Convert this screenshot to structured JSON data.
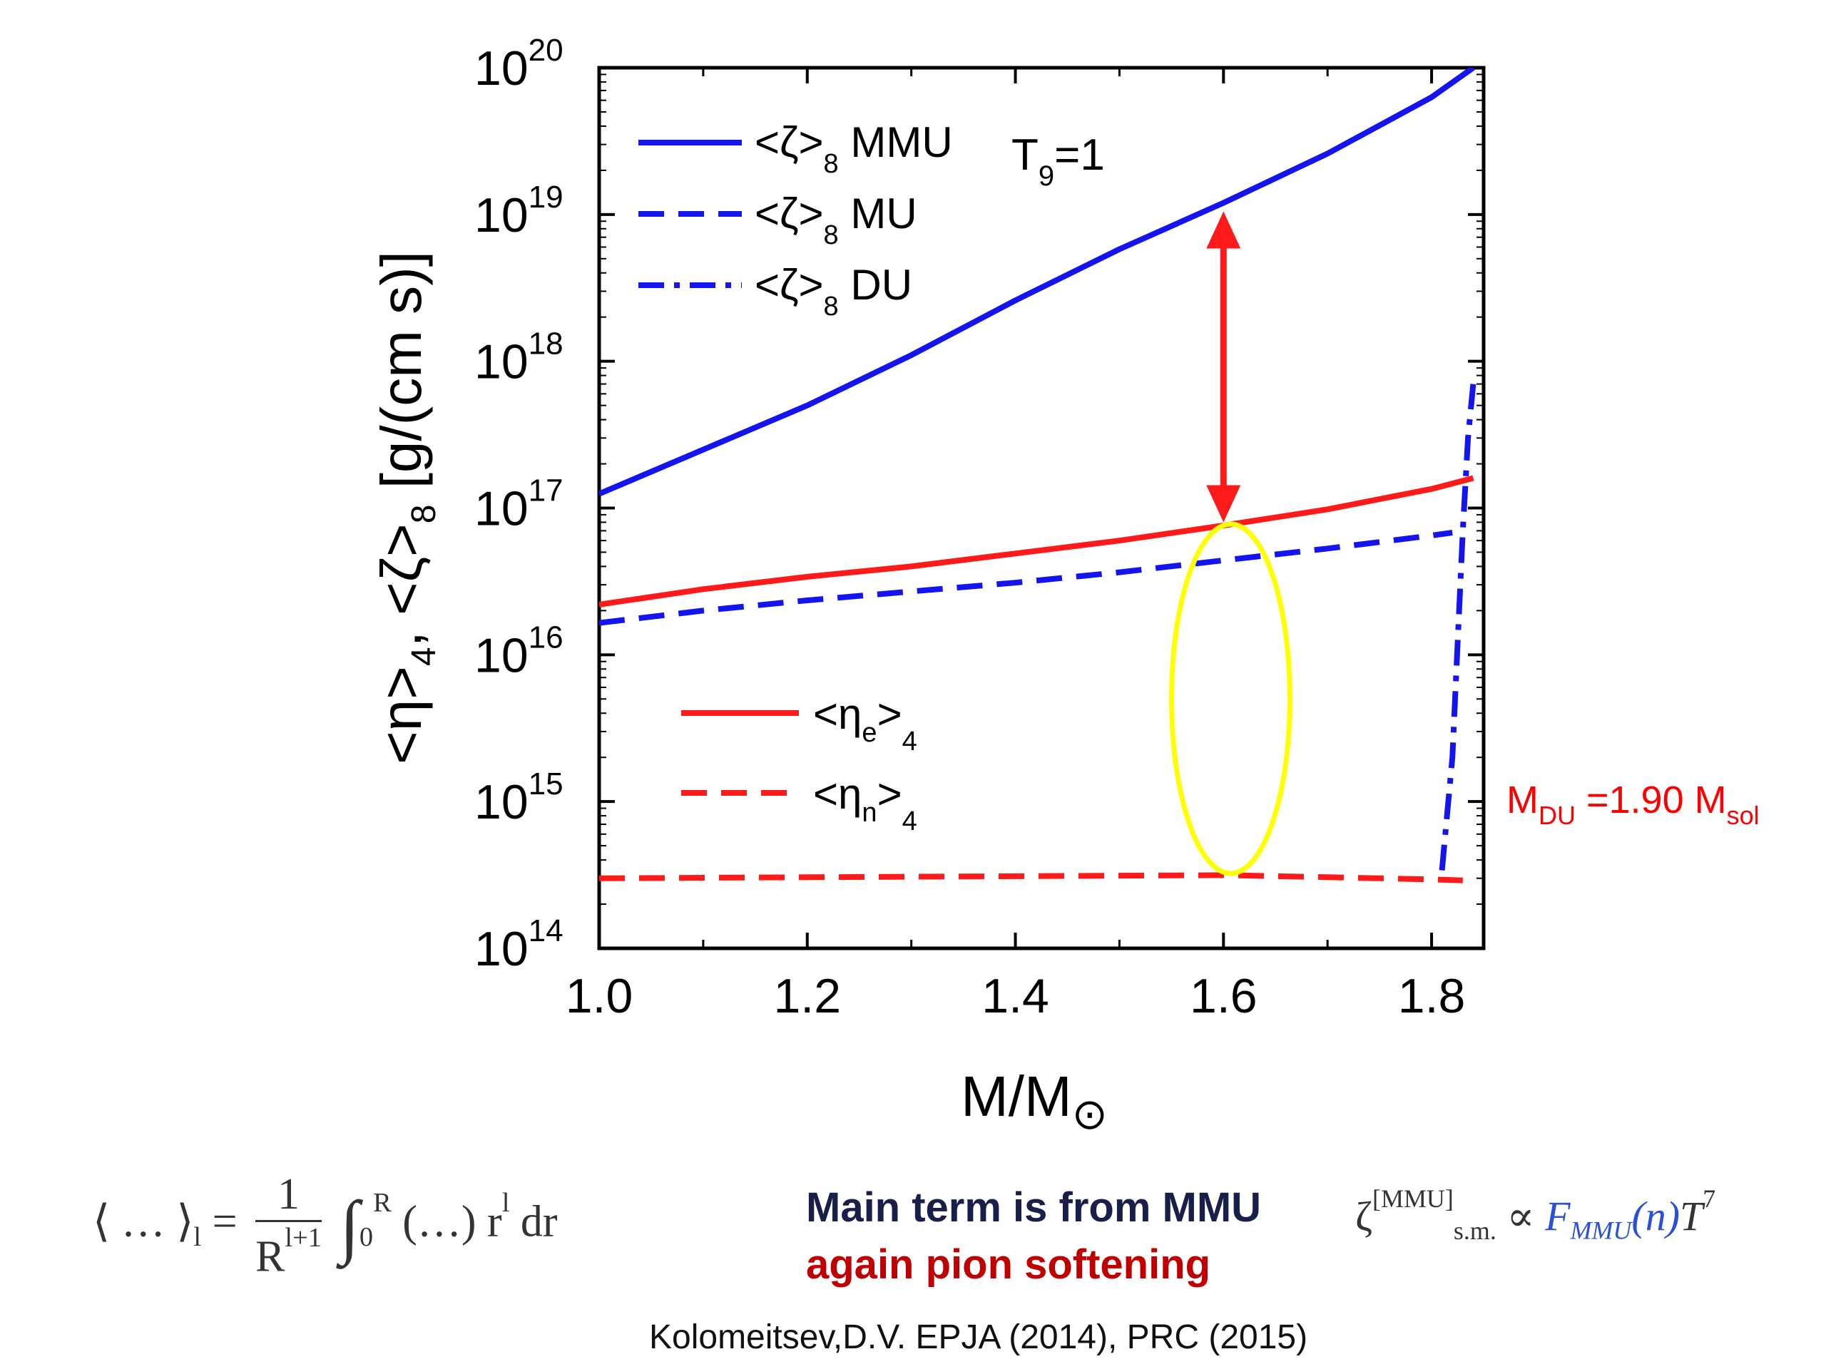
{
  "chart_data": {
    "type": "line",
    "xlabel": "M/M⊙",
    "ylabel": "<η>4, <ζ>8 [g/(cm s)]",
    "xlim": [
      1.0,
      1.85
    ],
    "ylim": [
      100000000000000.0,
      1e+20
    ],
    "y_scale": "log",
    "x_ticks": [
      "1.0",
      "1.2",
      "1.4",
      "1.6",
      "1.8"
    ],
    "x_tick_values": [
      1.0,
      1.2,
      1.4,
      1.6,
      1.8
    ],
    "y_tick_values": [
      100000000000000.0,
      1000000000000000.0,
      1e+16,
      1e+17,
      1e+18,
      1e+19,
      1e+20
    ],
    "y_tick_mantissa": "10",
    "y_tick_exponents": [
      "14",
      "15",
      "16",
      "17",
      "18",
      "19",
      "20"
    ],
    "grid": false,
    "annotation_temperature": {
      "main": "T",
      "sub": "9",
      "rest": "=1"
    },
    "annotation_threshold": {
      "m": "M",
      "sub1": "DU",
      "mid": " =1.90 M",
      "sub2": "sol",
      "color": "#ff0000"
    },
    "series": [
      {
        "key": "zeta_mmu",
        "label_main": "<ζ>",
        "label_sub": "8",
        "label_tail": " MMU",
        "color": "#1414f0",
        "dash": "solid",
        "x": [
          1.0,
          1.1,
          1.2,
          1.3,
          1.4,
          1.5,
          1.6,
          1.7,
          1.8,
          1.84
        ],
        "y": [
          1.25e+17,
          2.5e+17,
          5e+17,
          1.1e+18,
          2.6e+18,
          5.8e+18,
          1.2e+19,
          2.6e+19,
          6.3e+19,
          1e+20
        ]
      },
      {
        "key": "zeta_mu",
        "label_main": "<ζ>",
        "label_sub": "8",
        "label_tail": " MU",
        "color": "#1414f0",
        "dash": "dashed",
        "x": [
          1.0,
          1.1,
          1.2,
          1.3,
          1.4,
          1.5,
          1.6,
          1.7,
          1.8,
          1.82
        ],
        "y": [
          1.65e+16,
          2e+16,
          2.35e+16,
          2.7e+16,
          3.1e+16,
          3.65e+16,
          4.4e+16,
          5.3e+16,
          6.5e+16,
          6.8e+16
        ]
      },
      {
        "key": "zeta_du",
        "label_main": "<ζ>",
        "label_sub": "8",
        "label_tail": " DU",
        "color": "#1414f0",
        "dash": "dashdot",
        "x": [
          1.81,
          1.82,
          1.83,
          1.835,
          1.84
        ],
        "y": [
          340000000000000.0,
          2000000000000000.0,
          7e+16,
          3e+17,
          7e+17
        ]
      },
      {
        "key": "eta_e",
        "label_main": "<η",
        "label_sub": "e",
        "label_tail": ">",
        "label_sub2": "4",
        "color": "#ff1a1a",
        "dash": "solid",
        "x": [
          1.0,
          1.1,
          1.2,
          1.3,
          1.4,
          1.5,
          1.6,
          1.7,
          1.8,
          1.84
        ],
        "y": [
          2.2e+16,
          2.8e+16,
          3.4e+16,
          4e+16,
          4.9e+16,
          6e+16,
          7.6e+16,
          9.8e+16,
          1.35e+17,
          1.6e+17
        ]
      },
      {
        "key": "eta_n",
        "label_main": "<η",
        "label_sub": "n",
        "label_tail": ">",
        "label_sub2": "4",
        "color": "#ff1a1a",
        "dash": "dashed",
        "x": [
          1.0,
          1.2,
          1.4,
          1.6,
          1.7,
          1.8,
          1.83
        ],
        "y": [
          300000000000000.0,
          305000000000000.0,
          310000000000000.0,
          315000000000000.0,
          305000000000000.0,
          295000000000000.0,
          290000000000000.0
        ]
      }
    ]
  },
  "formula_left": {
    "bracket": "⟨ … ⟩",
    "sub": "l",
    "eq": " =",
    "num": "1",
    "den": "R",
    "den_sup": "l+1",
    "integral": "∫",
    "upper": "R",
    "lower": "0",
    "body": "(…) r",
    "body_sup": "l",
    "tail": " dr"
  },
  "note_main": {
    "text": "Main term is from MMU",
    "color": "#1a1f4a"
  },
  "note_sub": {
    "text": "again pion softening",
    "color": "#c00000"
  },
  "formula_right": {
    "zeta": "ζ",
    "sup": "[MMU]",
    "sub": "s.m.",
    "prop": " ∝ ",
    "f": "F",
    "f_sub": "MMU",
    "f_arg": "(n)",
    "t": "T",
    "t_sup": "7"
  },
  "citation": "Kolomeitsev,D.V. EPJA (2014), PRC (2015)",
  "colors": {
    "blue": "#1414f0",
    "red": "#ff1a1a",
    "yellow": "#ffff00",
    "navy": "#1a1f4a"
  }
}
